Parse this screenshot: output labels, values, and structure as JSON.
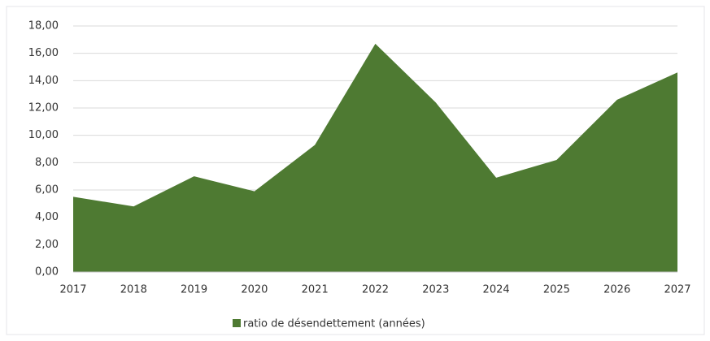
{
  "chart_data": {
    "type": "area",
    "categories": [
      "2017",
      "2018",
      "2019",
      "2020",
      "2021",
      "2022",
      "2023",
      "2024",
      "2025",
      "2026",
      "2027"
    ],
    "series": [
      {
        "name": "ratio de désendettement (années)",
        "color": "#4e7a32",
        "values": [
          5.5,
          4.8,
          7.0,
          5.9,
          9.3,
          16.7,
          12.4,
          6.9,
          8.2,
          12.6,
          14.6
        ]
      }
    ],
    "ylim": [
      0,
      18
    ],
    "yticks": [
      {
        "value": 0,
        "label": "0,00"
      },
      {
        "value": 2,
        "label": "2,00"
      },
      {
        "value": 4,
        "label": "4,00"
      },
      {
        "value": 6,
        "label": "6,00"
      },
      {
        "value": 8,
        "label": "8,00"
      },
      {
        "value": 10,
        "label": "10,00"
      },
      {
        "value": 12,
        "label": "12,00"
      },
      {
        "value": 14,
        "label": "14,00"
      },
      {
        "value": 16,
        "label": "16,00"
      },
      {
        "value": 18,
        "label": "18,00"
      }
    ],
    "grid": true,
    "legend": "bottom"
  }
}
